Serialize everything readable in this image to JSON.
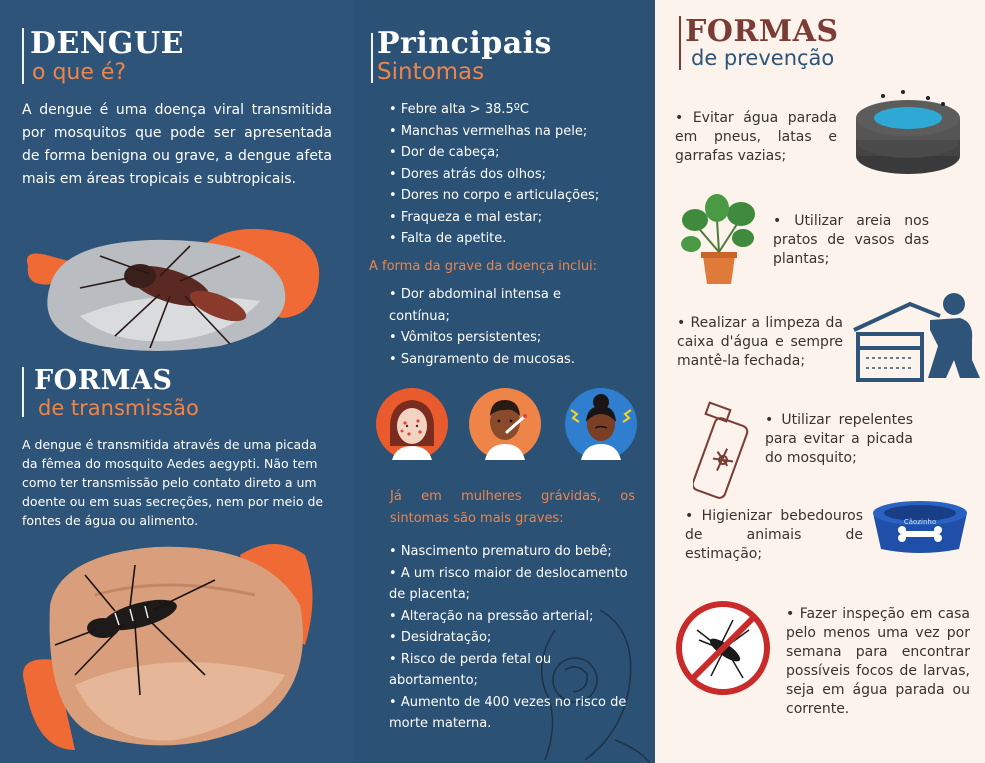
{
  "col1": {
    "title1": "DENGUE",
    "subtitle1": "o que é?",
    "intro": "A dengue é uma doença viral transmitida por mosquitos que pode ser apresentada de forma benigna ou grave, a dengue afeta mais em áreas tropicais e subtropicais.",
    "title2": "FORMAS",
    "subtitle2": "de transmissão",
    "transmission": "A dengue é transmitida através de uma picada da fêmea do mosquito Aedes aegypti. Não tem como ter transmissão pelo contato direto a um doente ou em suas secreções, nem por meio de fontes de água ou alimento."
  },
  "col2": {
    "title": "Principais",
    "subtitle": "Sintomas",
    "symptoms": [
      "Febre alta > 38.5ºC",
      "Manchas vermelhas na pele;",
      "Dor de cabeça;",
      "Dores atrás dos olhos;",
      "Dores no corpo e articulações;",
      "Fraqueza e mal estar;",
      "Falta de apetite."
    ],
    "grave_heading": "A forma da grave da doença inclui:",
    "grave_items": [
      "Dor abdominal intensa e contínua;",
      "Vômitos persistentes;",
      "Sangramento de mucosas."
    ],
    "pregnant_heading": "Já em mulheres grávidas, os sintomas são mais graves:",
    "pregnant_items": [
      "Nascimento prematuro do bebê;",
      "A um risco maior de deslocamento de placenta;",
      "Alteração na pressão arterial;",
      "Desidratação;",
      "Risco de perda fetal ou abortamento;",
      "Aumento de 400 vezes no risco de morte materna."
    ]
  },
  "col3": {
    "title": "FORMAS",
    "subtitle": "de prevenção",
    "items": [
      "• Evitar água parada em pneus, latas e garrafas vazias;",
      "• Utilizar areia nos pratos de vasos das plantas;",
      "• Realizar a limpeza da caixa d'água e sempre mantê-la fechada;",
      "• Utilizar repelentes para evitar a picada do mosquito;",
      "• Higienizar bebedouros de animais de estimação;",
      "• Fazer inspeção em casa pelo menos uma vez por semana para encontrar possíveis focos de larvas, seja em água parada ou corrente."
    ],
    "bowl_label": "Cãozinho"
  },
  "colors": {
    "navy": "#2e5479",
    "orange": "#ef8448",
    "cream": "#fbf3ec",
    "brown": "#7a3c34"
  }
}
